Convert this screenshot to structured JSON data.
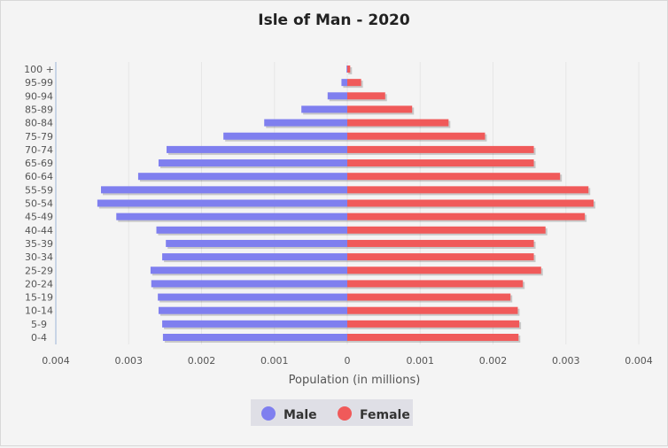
{
  "chart_data": {
    "type": "bar",
    "orientation": "horizontal",
    "title": "Isle of Man - 2020",
    "xlabel": "Population (in millions)",
    "ylabel": "",
    "xlim": [
      -0.004,
      0.004
    ],
    "xticks": [
      -0.004,
      -0.003,
      -0.002,
      -0.001,
      0,
      0.001,
      0.002,
      0.003,
      0.004
    ],
    "xtick_labels": [
      "0.004",
      "0.003",
      "0.002",
      "0.001",
      "0",
      "0.001",
      "0.002",
      "0.003",
      "0.004"
    ],
    "categories": [
      "0-4",
      "5-9",
      "10-14",
      "15-19",
      "20-24",
      "25-29",
      "30-34",
      "35-39",
      "40-44",
      "45-49",
      "50-54",
      "55-59",
      "60-64",
      "65-69",
      "70-74",
      "75-79",
      "80-84",
      "85-89",
      "90-94",
      "95-99",
      "100 +"
    ],
    "series": [
      {
        "name": "Male",
        "color": "#7f7fef",
        "side": "left",
        "values": [
          0.00253,
          0.00254,
          0.00259,
          0.0026,
          0.00269,
          0.0027,
          0.00254,
          0.00249,
          0.00262,
          0.00317,
          0.00343,
          0.00338,
          0.00287,
          0.00259,
          0.00248,
          0.0017,
          0.00114,
          0.00063,
          0.00027,
          8e-05,
          1e-05
        ]
      },
      {
        "name": "Female",
        "color": "#f05a5a",
        "side": "right",
        "values": [
          0.00235,
          0.00236,
          0.00234,
          0.00224,
          0.00241,
          0.00266,
          0.00256,
          0.00256,
          0.00272,
          0.00326,
          0.00338,
          0.00331,
          0.00292,
          0.00256,
          0.00256,
          0.00189,
          0.00139,
          0.00089,
          0.00052,
          0.00019,
          4e-05
        ]
      }
    ],
    "grid": true,
    "legend": "bottom"
  }
}
